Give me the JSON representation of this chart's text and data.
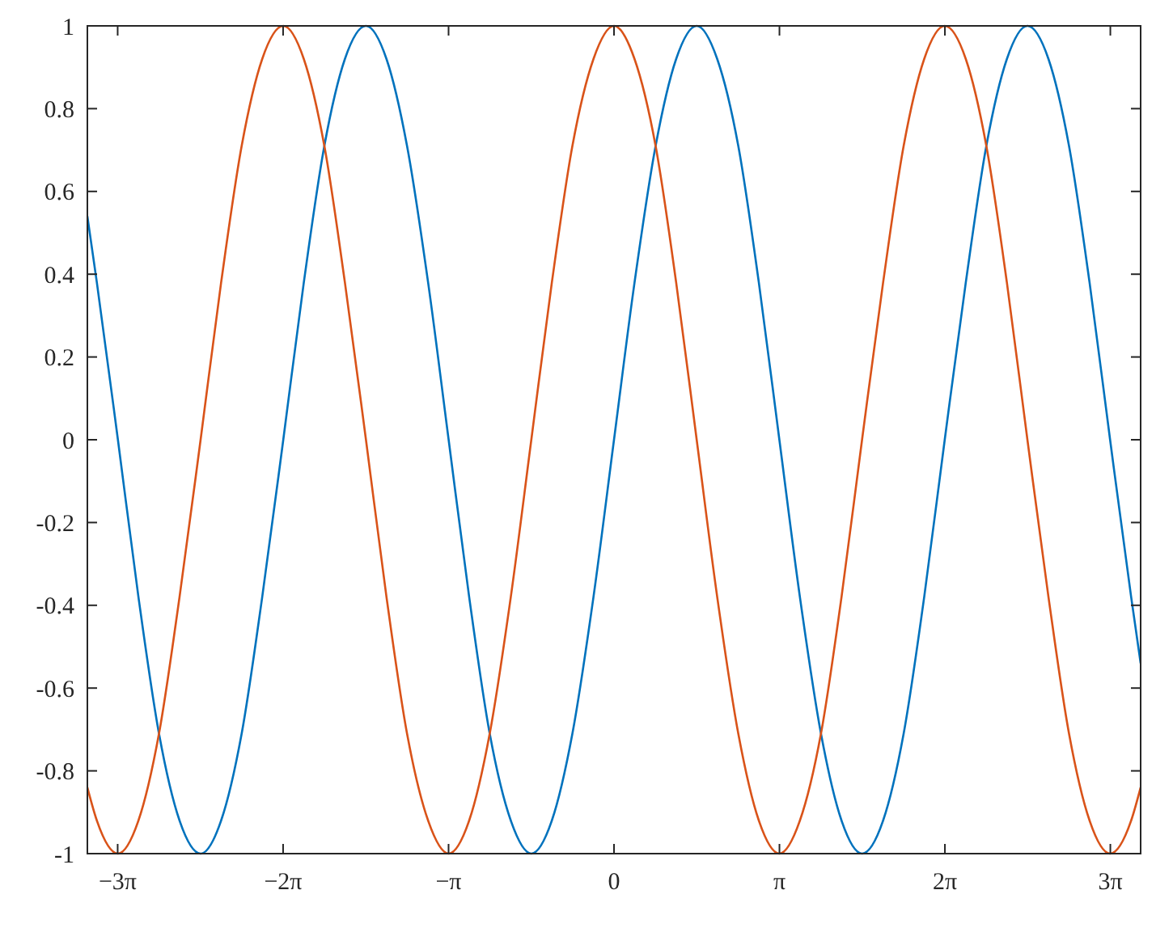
{
  "chart_data": {
    "type": "line",
    "x": [
      -10,
      -9.82,
      -9.42,
      -9.03,
      -8.64,
      -8.25,
      -7.85,
      -7.46,
      -7.07,
      -6.68,
      -6.28,
      -5.89,
      -5.5,
      -5.11,
      -4.71,
      -4.32,
      -3.93,
      -3.53,
      -3.14,
      -2.75,
      -2.36,
      -1.96,
      -1.57,
      -1.18,
      -0.79,
      -0.39,
      0,
      0.39,
      0.79,
      1.18,
      1.57,
      1.96,
      2.36,
      2.75,
      3.14,
      3.53,
      3.93,
      4.32,
      4.71,
      5.11,
      5.5,
      5.89,
      6.28,
      6.68,
      7.07,
      7.46,
      7.85,
      8.25,
      8.64,
      9.03,
      9.42,
      9.82,
      10
    ],
    "series": [
      {
        "color": "#0072bd",
        "values": [
          0.54,
          0.38,
          0,
          -0.38,
          -0.71,
          -0.92,
          -1,
          -0.92,
          -0.71,
          -0.38,
          0,
          0.38,
          0.71,
          0.92,
          1,
          0.92,
          0.71,
          0.38,
          0,
          -0.38,
          -0.71,
          -0.92,
          -1,
          -0.92,
          -0.71,
          -0.38,
          0,
          0.38,
          0.71,
          0.92,
          1,
          0.92,
          0.71,
          0.38,
          0,
          -0.38,
          -0.71,
          -0.92,
          -1,
          -0.92,
          -0.71,
          -0.38,
          0,
          0.38,
          0.71,
          0.92,
          1,
          0.92,
          0.71,
          0.38,
          0,
          -0.38,
          -0.54
        ]
      },
      {
        "color": "#d95319",
        "values": [
          -0.84,
          -0.92,
          -1,
          -0.92,
          -0.71,
          -0.38,
          0,
          0.38,
          0.71,
          0.92,
          1,
          0.92,
          0.71,
          0.38,
          0,
          -0.38,
          -0.71,
          -0.92,
          -1,
          -0.92,
          -0.71,
          -0.38,
          0,
          0.38,
          0.71,
          0.92,
          1,
          0.92,
          0.71,
          0.38,
          0,
          -0.38,
          -0.71,
          -0.92,
          -1,
          -0.92,
          -0.71,
          -0.38,
          0,
          0.38,
          0.71,
          0.92,
          1,
          0.92,
          0.71,
          0.38,
          0,
          -0.38,
          -0.71,
          -0.92,
          -1,
          -0.92,
          -0.84
        ]
      }
    ],
    "xlim": [
      -10,
      10
    ],
    "ylim": [
      -1,
      1
    ],
    "xticks": [
      {
        "value": -9.4248,
        "label": "−3π"
      },
      {
        "value": -6.2832,
        "label": "−2π"
      },
      {
        "value": -3.1416,
        "label": "−π"
      },
      0,
      {
        "value": 3.1416,
        "label": "π"
      },
      {
        "value": 6.2832,
        "label": "2π"
      },
      {
        "value": 9.4248,
        "label": "3π"
      }
    ],
    "yticks": [
      -1,
      -0.8,
      -0.6,
      -0.4,
      -0.2,
      0,
      0.2,
      0.4,
      0.6,
      0.8,
      1
    ],
    "grid": false,
    "marker": "none",
    "line_style": "solid"
  }
}
